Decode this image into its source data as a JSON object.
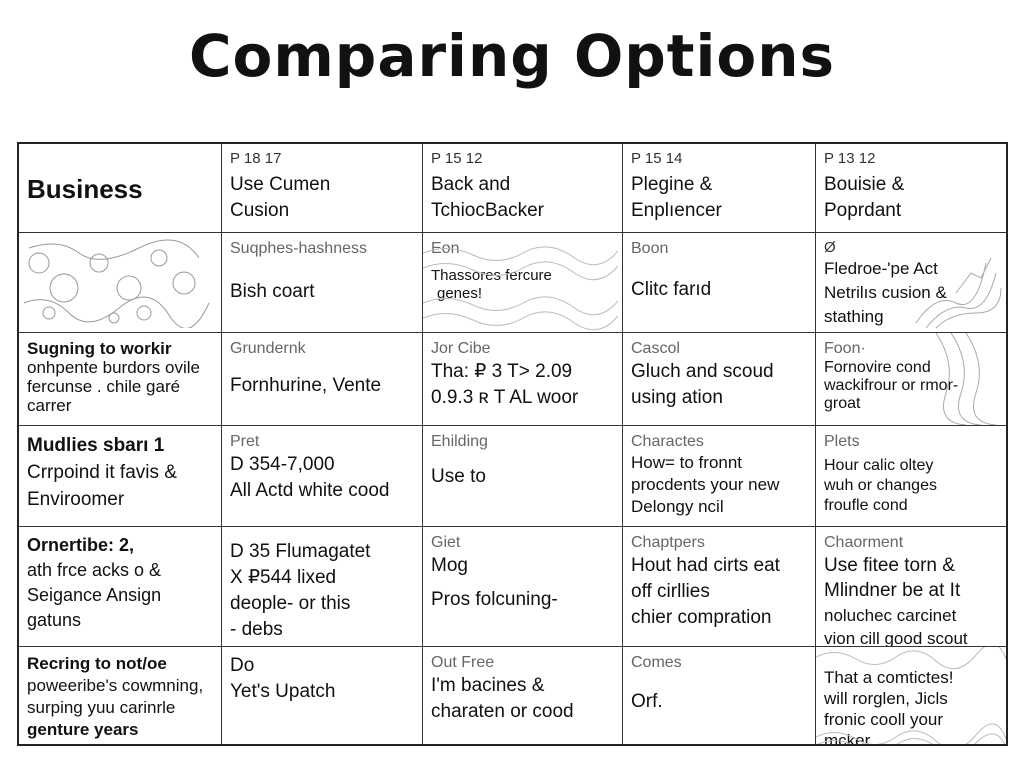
{
  "title": "Comparing Options",
  "table": {
    "row1": {
      "c1": "Business",
      "c2": {
        "code": "P 18 17",
        "line1": "Use Cumen",
        "line2": "Cusion"
      },
      "c3": {
        "code": "P 15 12",
        "line1": "Back and",
        "line2": "TchiocBacker"
      },
      "c4": {
        "code": "P 15 14",
        "line1": "Plegine &",
        "line2": "Enplıencer"
      },
      "c5": {
        "code": "P 13 12",
        "line1": "Bouisie &",
        "line2": "Poprdant"
      }
    },
    "row2": {
      "c2": {
        "sub": "Suqphes-hashness",
        "text": "Bish coart"
      },
      "c3": {
        "sub": "Eon",
        "line1": "Thassores fercure",
        "line2": "genes!"
      },
      "c4": {
        "sub": "Boon",
        "text": "Clitc farıd"
      },
      "c5": {
        "sub": "Ø",
        "line1": "Fledroe-'pe Act",
        "line2": "Netrilıs cusion &",
        "line3": "stathing"
      }
    },
    "row3": {
      "c1": {
        "line1": "Sugning to workir",
        "line2": "onhpente burdors ovile",
        "line3": "fercunse . chile garé",
        "line4": "carrer"
      },
      "c2": {
        "sub": "Grundernk",
        "text": "Fornhurine, Vente"
      },
      "c3": {
        "sub": "Jor Cibe",
        "line1": "Tha: ₽ 3 T> 2.09",
        "line2": "0.9.3 ʀ T AL woor"
      },
      "c4": {
        "sub": "Cascol",
        "line1": "Gluch and scoud",
        "line2": "using ation"
      },
      "c5": {
        "sub": "Foon·",
        "line1": "Fornovire cond",
        "line2": "wackifrour or rmor-",
        "line3": "groat"
      }
    },
    "row4": {
      "c1": {
        "line1": "Mudlies sbarı 1",
        "line2": "Crrpoind it favis &",
        "line3": "Enviroomer"
      },
      "c2": {
        "sub": "Pret",
        "line1": "D 354-7,000",
        "line2": "All Actd white cood"
      },
      "c3": {
        "sub": "Ehilding",
        "text": "Use to"
      },
      "c4": {
        "sub": "Charactes",
        "line1": "How= to fronnt",
        "line2": "procdents your new",
        "line3": "Delongy ncil"
      },
      "c5": {
        "sub": "Plets",
        "line1": "Hour calic oltey",
        "line2": "wuh or changes",
        "line3": "froufle cond"
      }
    },
    "row5": {
      "c1": {
        "line1": "Ornertibe: 2,",
        "line2": "ath frce acks o &",
        "line3": "Seigance Ansign",
        "line4": "gatuns"
      },
      "c2": {
        "line1": "D 35 Flumagatet",
        "line2": "X  ₽544 lixed",
        "line3": "deople- or this",
        "line4": "- debs"
      },
      "c3": {
        "sub": "Giet",
        "line1": "Mog",
        "line2": "Pros folcuning-"
      },
      "c4": {
        "sub": "Chaptpers",
        "line1": "Hout had cirts eat",
        "line2": "off cirllies",
        "line3": "chier compration"
      },
      "c5": {
        "sub": "Chaorment",
        "line1": "Use fitee torn &",
        "line2": "Mlindner be at It",
        "line3": "noluchec carcinet",
        "line4": "vion cill good scout"
      }
    },
    "row6": {
      "c1": {
        "line1": "Recring to not/oe",
        "line2": "poweeribe's cowmning,",
        "line3": "surping yuu carinrle",
        "line4": "genture years"
      },
      "c2": {
        "line1": "Do",
        "line2": "Yet's Upatch"
      },
      "c3": {
        "sub": "Out Free",
        "line1": "I'm bacines &",
        "line2": "charaten or cood"
      },
      "c4": {
        "sub": "Comes",
        "text": "Orf."
      },
      "c5": {
        "line1": "That a comtictes!",
        "line2": "will rorglen, Jicls",
        "line3": "fronic cooll your",
        "line4": "mcker"
      }
    }
  }
}
